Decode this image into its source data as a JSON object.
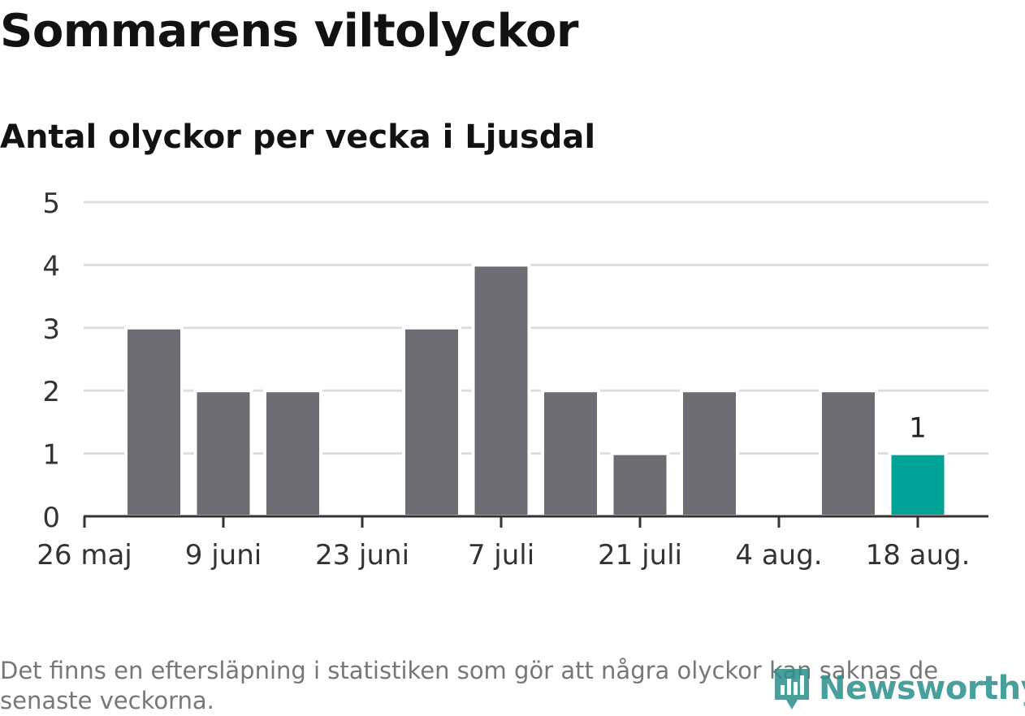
{
  "title": "Sommarens viltolyckor",
  "subtitle": "Antal olyckor per vecka i Ljusdal",
  "footnote": "Det finns en eftersläpning i statistiken som gör att några olyckor kan saknas de senaste veckorna.",
  "logo_text": "Newsworthy",
  "colors": {
    "bar": "#6d6c72",
    "highlight": "#00a396",
    "grid": "#dddddd",
    "axis": "#333333",
    "text": "#333333"
  },
  "chart_data": {
    "type": "bar",
    "title": "Sommarens viltolyckor",
    "subtitle": "Antal olyckor per vecka i Ljusdal",
    "xlabel": "",
    "ylabel": "",
    "ylim": [
      0,
      5
    ],
    "yticks": [
      0,
      1,
      2,
      3,
      4,
      5
    ],
    "x_tick_labels": [
      "26 maj",
      "9 juni",
      "23 juni",
      "7 juli",
      "21 juli",
      "4 aug.",
      "18 aug."
    ],
    "values": [
      3,
      2,
      2,
      0,
      3,
      4,
      2,
      1,
      2,
      0,
      2,
      1
    ],
    "highlight_last": true,
    "data_labels": [
      {
        "index": 11,
        "text": "1"
      }
    ],
    "grid": true,
    "legend": "none"
  }
}
